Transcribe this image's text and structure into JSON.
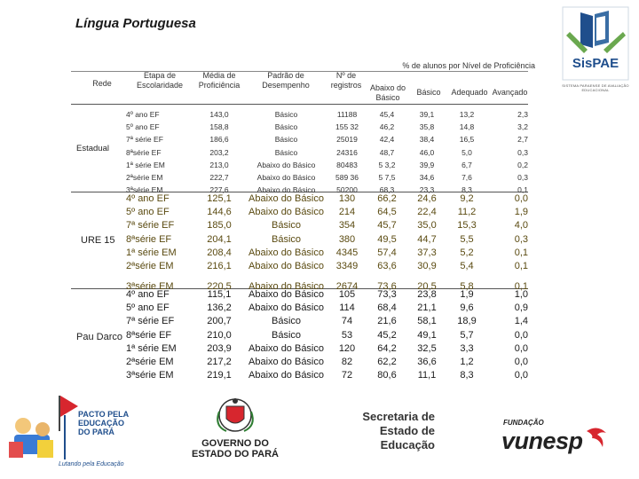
{
  "title": "Língua Portuguesa",
  "logo": {
    "name": "SisPAE",
    "caption": "SISTEMA PARAENSE DE AVALIAÇÃO EDUCACIONAL"
  },
  "headers": {
    "rede": "Rede",
    "etapa": [
      "Etapa de",
      "Escolaridade"
    ],
    "media": [
      "Média de",
      "Proficiência"
    ],
    "padrao": [
      "Padrão de",
      "Desempenho"
    ],
    "registros": [
      "Nº de",
      "registros"
    ],
    "percent_title": "% de alunos por Nível de Proficiência",
    "abaixo": [
      "Abaixo do",
      "Básico"
    ],
    "basico": "Básico",
    "adequado": "Adequado",
    "avancado": "Avançado"
  },
  "groups": [
    {
      "rede": "Estadual",
      "rows": [
        {
          "etapa": "4º ano EF",
          "media": "143,0",
          "padrao": "Básico",
          "registros": "11188",
          "abaixo": "45,4",
          "basico": "39,1",
          "adequado": "13,2",
          "avancado": "2,3"
        },
        {
          "etapa": "5º ano EF",
          "media": "158,8",
          "padrao": "Básico",
          "registros": "155 32",
          "abaixo": "46,2",
          "basico": "35,8",
          "adequado": "14,8",
          "avancado": "3,2"
        },
        {
          "etapa": "7ª série EF",
          "media": "186,6",
          "padrao": "Básico",
          "registros": "25019",
          "abaixo": "42,4",
          "basico": "38,4",
          "adequado": "16,5",
          "avancado": "2,7"
        },
        {
          "etapa": "8ªsérie EF",
          "media": "203,2",
          "padrao": "Básico",
          "registros": "24316",
          "abaixo": "48,7",
          "basico": "46,0",
          "adequado": "5,0",
          "avancado": "0,3"
        },
        {
          "etapa": "1ª série EM",
          "media": "213,0",
          "padrao": "Abaixo do Básico",
          "registros": "80483",
          "abaixo": "5 3,2",
          "basico": "39,9",
          "adequado": "6,7",
          "avancado": "0,2"
        },
        {
          "etapa": "2ªsérie EM",
          "media": "222,7",
          "padrao": "Abaixo do Básico",
          "registros": "589 36",
          "abaixo": "5 7,5",
          "basico": "34,6",
          "adequado": "7,6",
          "avancado": "0,3"
        },
        {
          "etapa": "3ªsérie EM",
          "media": "227,6",
          "padrao": "Abaixo do Básico",
          "registros": "50200",
          "abaixo": "68,3",
          "basico": "23,3",
          "adequado": "8,3",
          "avancado": "0,1"
        }
      ]
    },
    {
      "rede": "URE 15",
      "rows": [
        {
          "etapa": "4º ano EF",
          "media": "125,1",
          "padrao": "Abaixo do Básico",
          "registros": "130",
          "abaixo": "66,2",
          "basico": "24,6",
          "adequado": "9,2",
          "avancado": "0,0"
        },
        {
          "etapa": "5º ano EF",
          "media": "144,6",
          "padrao": "Abaixo do Básico",
          "registros": "214",
          "abaixo": "64,5",
          "basico": "22,4",
          "adequado": "11,2",
          "avancado": "1,9"
        },
        {
          "etapa": "7ª série EF",
          "media": "185,0",
          "padrao": "Básico",
          "registros": "354",
          "abaixo": "45,7",
          "basico": "35,0",
          "adequado": "15,3",
          "avancado": "4,0"
        },
        {
          "etapa": "8ªsérie EF",
          "media": "204,1",
          "padrao": "Básico",
          "registros": "380",
          "abaixo": "49,5",
          "basico": "44,7",
          "adequado": "5,5",
          "avancado": "0,3"
        },
        {
          "etapa": "1ª série EM",
          "media": "208,4",
          "padrao": "Abaixo do Básico",
          "registros": "4345",
          "abaixo": "57,4",
          "basico": "37,3",
          "adequado": "5,2",
          "avancado": "0,1"
        },
        {
          "etapa": "2ªsérie EM",
          "media": "216,1",
          "padrao": "Abaixo do Básico",
          "registros": "3349",
          "abaixo": "63,6",
          "basico": "30,9",
          "adequado": "5,4",
          "avancado": "0,1"
        },
        {
          "etapa": "3ªsérie EM",
          "media": "220,5",
          "padrao": "Abaixo do Básico",
          "registros": "2674",
          "abaixo": "73,6",
          "basico": "20,5",
          "adequado": "5,8",
          "avancado": "0,1"
        }
      ]
    },
    {
      "rede": "Pau Darco",
      "rows": [
        {
          "etapa": "4º ano EF",
          "media": "115,1",
          "padrao": "Abaixo do Básico",
          "registros": "105",
          "abaixo": "73,3",
          "basico": "23,8",
          "adequado": "1,9",
          "avancado": "1,0"
        },
        {
          "etapa": "5º ano EF",
          "media": "136,2",
          "padrao": "Abaixo do Básico",
          "registros": "114",
          "abaixo": "68,4",
          "basico": "21,1",
          "adequado": "9,6",
          "avancado": "0,9"
        },
        {
          "etapa": "7ª série EF",
          "media": "200,7",
          "padrao": "Básico",
          "registros": "74",
          "abaixo": "21,6",
          "basico": "58,1",
          "adequado": "18,9",
          "avancado": "1,4"
        },
        {
          "etapa": "8ªsérie EF",
          "media": "210,0",
          "padrao": "Básico",
          "registros": "53",
          "abaixo": "45,2",
          "basico": "49,1",
          "adequado": "5,7",
          "avancado": "0,0"
        },
        {
          "etapa": "1ª série EM",
          "media": "203,9",
          "padrao": "Abaixo do Básico",
          "registros": "120",
          "abaixo": "64,2",
          "basico": "32,5",
          "adequado": "3,3",
          "avancado": "0,0"
        },
        {
          "etapa": "2ªsérie EM",
          "media": "217,2",
          "padrao": "Abaixo do Básico",
          "registros": "82",
          "abaixo": "62,2",
          "basico": "36,6",
          "adequado": "1,2",
          "avancado": "0,0"
        },
        {
          "etapa": "3ªsérie EM",
          "media": "219,1",
          "padrao": "Abaixo do Básico",
          "registros": "72",
          "abaixo": "80,6",
          "basico": "11,1",
          "adequado": "8,3",
          "avancado": "0,0"
        }
      ]
    }
  ],
  "footer": {
    "pacto": [
      "PACTO PELA",
      "EDUCAÇÃO",
      "DO PARÁ"
    ],
    "pacto_slogan": "Lutando pela Educação",
    "governo": [
      "GOVERNO DO",
      "ESTADO DO PARÁ"
    ],
    "secretaria": [
      "Secretaria de",
      "Estado de",
      "Educação"
    ],
    "fundacao": "FUNDAÇÃO",
    "vunesp": "vunesp"
  },
  "colors": {
    "accent_blue": "#1f4e8c",
    "logo_green": "#6aa84f",
    "vunesp_red": "#d7262e"
  }
}
